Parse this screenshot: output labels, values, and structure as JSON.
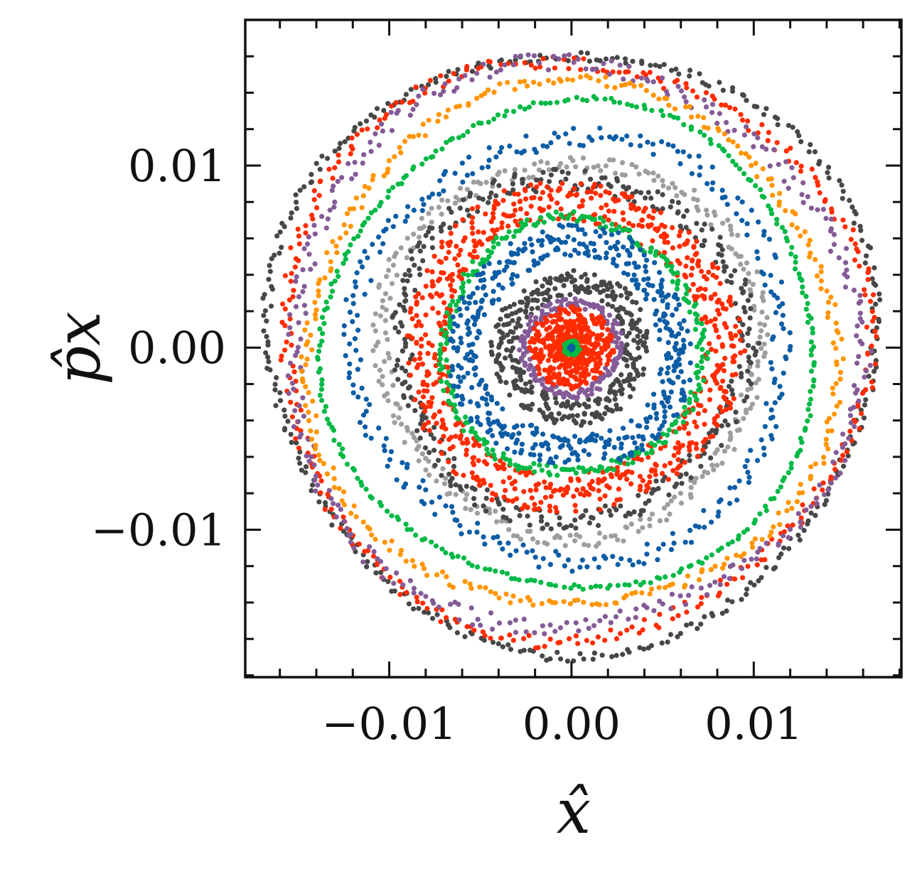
{
  "chart_data": {
    "type": "scatter",
    "title": "",
    "xlabel": "x̂",
    "ylabel": "p̂x",
    "xlim": [
      -0.0179,
      0.0181
    ],
    "ylim": [
      -0.0181,
      0.018
    ],
    "xticks": [
      {
        "value": -0.01,
        "label": "−0.01"
      },
      {
        "value": 0.0,
        "label": "0.00"
      },
      {
        "value": 0.01,
        "label": "0.01"
      }
    ],
    "yticks": [
      {
        "value": 0.01,
        "label": "0.01"
      },
      {
        "value": 0.0,
        "label": "0.00"
      },
      {
        "value": -0.01,
        "label": "−0.01"
      }
    ],
    "minor_tick_step": 0.002,
    "grid": false,
    "legend": "none",
    "series": [
      {
        "color": "#474747",
        "radius": 0.0165,
        "jitter": 0.00025,
        "points": 340
      },
      {
        "color": "#ff2c00",
        "radius": 0.0159,
        "jitter": 0.00035,
        "points": 320
      },
      {
        "color": "#845b97",
        "radius": 0.01545,
        "jitter": 0.00045,
        "points": 320
      },
      {
        "color": "#ff9500",
        "radius": 0.0144,
        "jitter": 0.0003,
        "points": 300
      },
      {
        "color": "#00b945",
        "radius": 0.0134,
        "jitter": 0.00012,
        "points": 280
      },
      {
        "color": "#0c5da5",
        "radius": 0.0117,
        "jitter": 0.00055,
        "points": 280
      },
      {
        "color": "#9e9e9e",
        "radius": 0.0103,
        "jitter": 0.00045,
        "points": 300
      },
      {
        "color": "#474747",
        "radius": 0.0094,
        "jitter": 0.0006,
        "points": 360
      },
      {
        "color": "#ff2c00",
        "radius": 0.0081,
        "jitter": 0.0011,
        "points": 700
      },
      {
        "color": "#00b945",
        "radius": 0.007,
        "jitter": 0.0003,
        "points": 260
      },
      {
        "color": "#0c5da5",
        "radius": 0.0058,
        "jitter": 0.0009,
        "points": 480
      },
      {
        "color": "#474747",
        "radius": 0.0036,
        "jitter": 0.0007,
        "points": 360
      },
      {
        "color": "#845b97",
        "radius": 0.0025,
        "jitter": 0.0003,
        "points": 160
      },
      {
        "color": "#ff2c00",
        "radius": 0.0014,
        "jitter": 0.0009,
        "points": 420
      },
      {
        "color": "#00b945",
        "radius": 0.00035,
        "jitter": 0.0001,
        "points": 60
      },
      {
        "color": "#0c5da5",
        "radius": 8e-05,
        "jitter": 5e-05,
        "points": 8
      }
    ]
  }
}
